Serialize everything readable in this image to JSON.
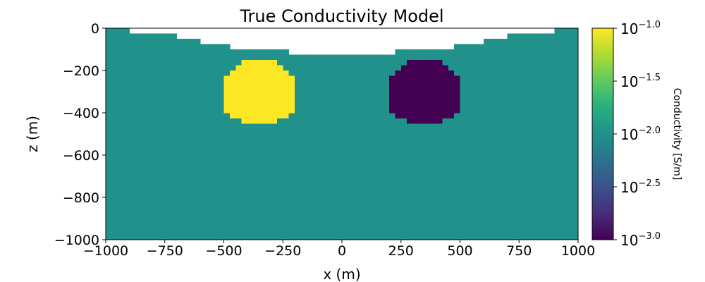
{
  "chart_data": {
    "type": "heatmap",
    "title": "True Conductivity Model",
    "xlabel": "x (m)",
    "ylabel": "z (m)",
    "xlim": [
      -1000,
      1000
    ],
    "ylim": [
      -1000,
      0
    ],
    "xticks": [
      -1000,
      -750,
      -500,
      -250,
      0,
      250,
      500,
      750,
      1000
    ],
    "xtick_labels": [
      "−1000",
      "−750",
      "−500",
      "−250",
      "0",
      "250",
      "500",
      "750",
      "1000"
    ],
    "yticks": [
      0,
      -200,
      -400,
      -600,
      -800,
      -1000
    ],
    "ytick_labels": [
      "0",
      "−200",
      "−400",
      "−600",
      "−800",
      "−1000"
    ],
    "colorbar": {
      "label": "Conductivity [S/m]",
      "scale": "log",
      "range": [
        0.001,
        0.1
      ],
      "colormap": "viridis",
      "ticks": [
        {
          "base": "10",
          "exp": "−1.0",
          "value": 0.1
        },
        {
          "base": "10",
          "exp": "−1.5",
          "value": 0.0316
        },
        {
          "base": "10",
          "exp": "−2.0",
          "value": 0.01
        },
        {
          "base": "10",
          "exp": "−2.5",
          "value": 0.00316
        },
        {
          "base": "10",
          "exp": "−3.0",
          "value": 0.001
        }
      ]
    },
    "background": {
      "value": 0.01,
      "color": "#21918c"
    },
    "air_color": "#ffffff",
    "topography": [
      {
        "x0": -1000,
        "x1": -900,
        "z": 0
      },
      {
        "x0": -900,
        "x1": -700,
        "z": -25
      },
      {
        "x0": -700,
        "x1": -600,
        "z": -50
      },
      {
        "x0": -600,
        "x1": -475,
        "z": -75
      },
      {
        "x0": -475,
        "x1": -225,
        "z": -100
      },
      {
        "x0": -225,
        "x1": 225,
        "z": -125
      },
      {
        "x0": 225,
        "x1": 475,
        "z": -100
      },
      {
        "x0": 475,
        "x1": 600,
        "z": -75
      },
      {
        "x0": 600,
        "x1": 700,
        "z": -50
      },
      {
        "x0": 700,
        "x1": 900,
        "z": -25
      },
      {
        "x0": 900,
        "x1": 1000,
        "z": 0
      }
    ],
    "anomalies": [
      {
        "value": 0.1,
        "color": "#fde725",
        "rows": [
          {
            "z0": -150,
            "z1": -175,
            "x0": -425,
            "x1": -275
          },
          {
            "z0": -175,
            "z1": -200,
            "x0": -450,
            "x1": -250
          },
          {
            "z0": -200,
            "z1": -225,
            "x0": -475,
            "x1": -225
          },
          {
            "z0": -225,
            "z1": -400,
            "x0": -500,
            "x1": -200
          },
          {
            "z0": -400,
            "z1": -425,
            "x0": -475,
            "x1": -225
          },
          {
            "z0": -425,
            "z1": -450,
            "x0": -425,
            "x1": -275
          }
        ]
      },
      {
        "value": 0.001,
        "color": "#440154",
        "rows": [
          {
            "z0": -150,
            "z1": -175,
            "x0": 275,
            "x1": 425
          },
          {
            "z0": -175,
            "z1": -200,
            "x0": 250,
            "x1": 450
          },
          {
            "z0": -200,
            "z1": -225,
            "x0": 225,
            "x1": 475
          },
          {
            "z0": -225,
            "z1": -400,
            "x0": 200,
            "x1": 500
          },
          {
            "z0": -400,
            "z1": -425,
            "x0": 225,
            "x1": 475
          },
          {
            "z0": -425,
            "z1": -450,
            "x0": 275,
            "x1": 425
          }
        ]
      }
    ]
  }
}
